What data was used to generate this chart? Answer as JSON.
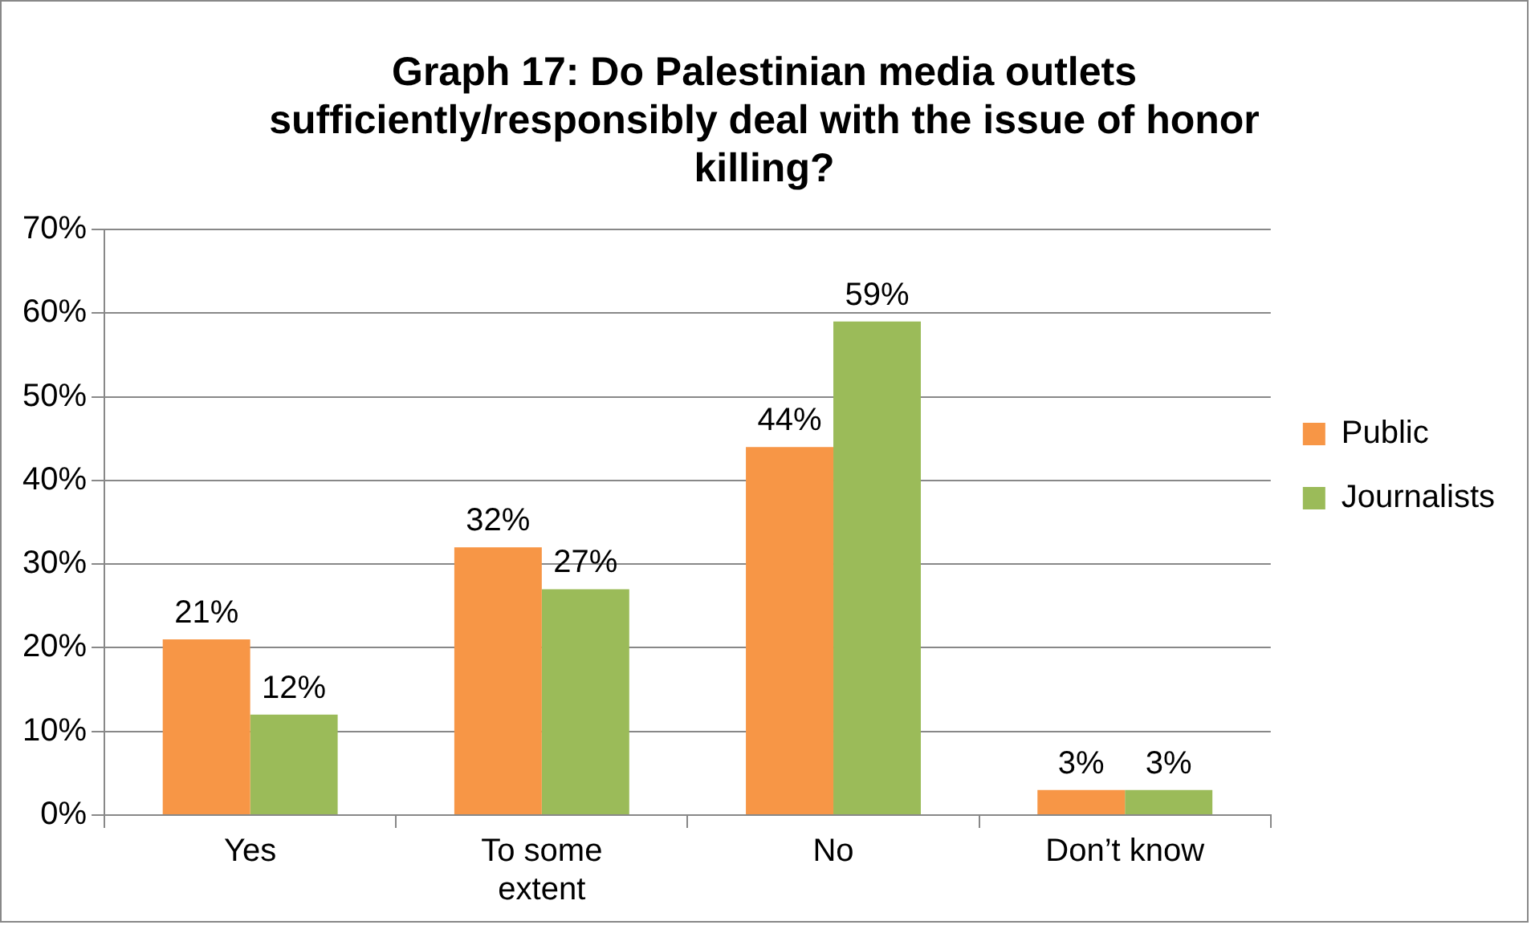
{
  "chart_data": {
    "type": "bar",
    "title": "Graph 17: Do Palestinian media outlets sufficiently/responsibly deal with the issue of honor killing?",
    "categories": [
      "Yes",
      "To some extent",
      "No",
      "Don’t know"
    ],
    "series": [
      {
        "name": "Public",
        "color": "#f79646",
        "values": [
          21,
          32,
          44,
          3
        ],
        "value_labels": [
          "21%",
          "32%",
          "44%",
          "3%"
        ]
      },
      {
        "name": "Journalists",
        "color": "#9bbb59",
        "values": [
          12,
          27,
          59,
          3
        ],
        "value_labels": [
          "12%",
          "27%",
          "59%",
          "3%"
        ]
      }
    ],
    "ylim": [
      0,
      70
    ],
    "yticks": [
      {
        "value": 0,
        "label": "0%"
      },
      {
        "value": 10,
        "label": "10%"
      },
      {
        "value": 20,
        "label": "20%"
      },
      {
        "value": 30,
        "label": "30%"
      },
      {
        "value": 40,
        "label": "40%"
      },
      {
        "value": 50,
        "label": "50%"
      },
      {
        "value": 60,
        "label": "60%"
      },
      {
        "value": 70,
        "label": "70%"
      }
    ],
    "grid": "y",
    "legend": "right"
  }
}
